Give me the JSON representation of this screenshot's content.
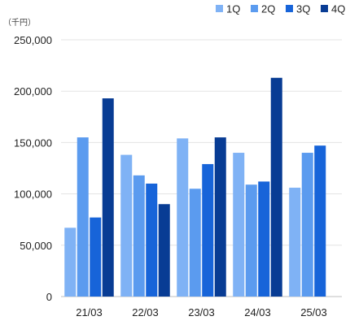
{
  "chart_data": {
    "type": "bar",
    "unit_label": "（千円）",
    "categories": [
      "21/03",
      "22/03",
      "23/03",
      "24/03",
      "25/03"
    ],
    "series": [
      {
        "name": "1Q",
        "color": "#7fb2f5",
        "values": [
          67000,
          138000,
          154000,
          140000,
          106000
        ]
      },
      {
        "name": "2Q",
        "color": "#5b9bef",
        "values": [
          155000,
          118000,
          105000,
          109000,
          140000
        ]
      },
      {
        "name": "3Q",
        "color": "#1764d9",
        "values": [
          77000,
          110000,
          129000,
          112000,
          147000
        ]
      },
      {
        "name": "4Q",
        "color": "#083c94",
        "values": [
          193000,
          90000,
          155000,
          213000,
          null
        ]
      }
    ],
    "yticks": [
      "0",
      "50,000",
      "100,000",
      "150,000",
      "200,000",
      "250,000"
    ],
    "ylim": [
      0,
      250000
    ],
    "grid": true,
    "legend_position": "top-right"
  }
}
